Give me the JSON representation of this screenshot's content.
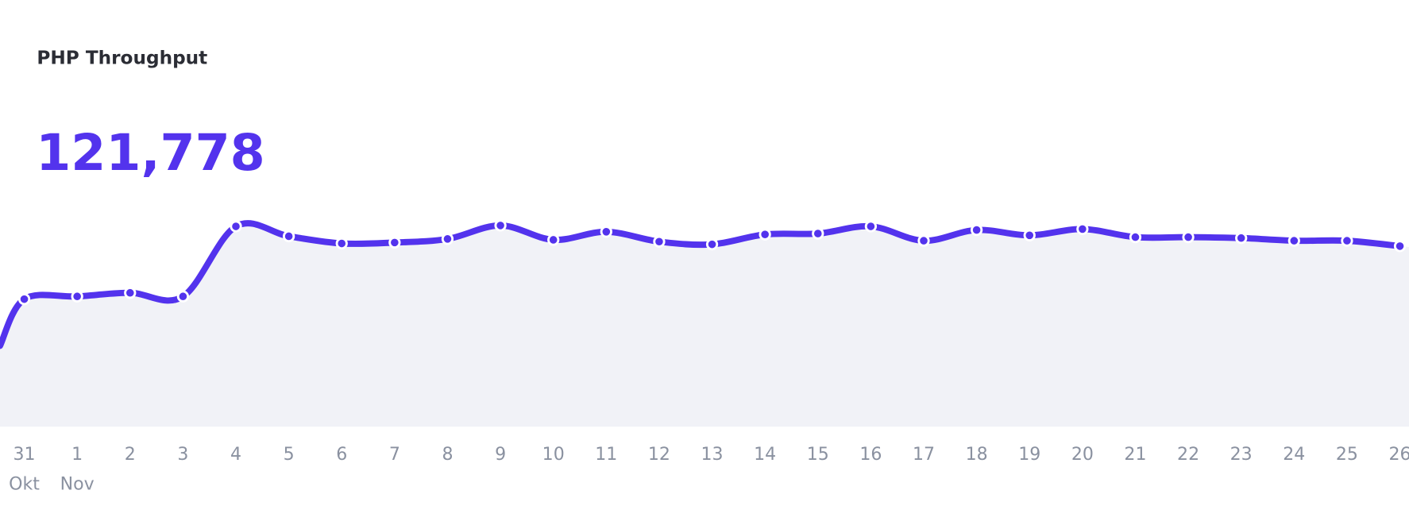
{
  "chart_data": {
    "type": "area",
    "title": "PHP Throughput",
    "total": "121,778",
    "categories": [
      "31",
      "1",
      "2",
      "3",
      "4",
      "5",
      "6",
      "7",
      "8",
      "9",
      "10",
      "11",
      "12",
      "13",
      "14",
      "15",
      "16",
      "17",
      "18",
      "19",
      "20",
      "21",
      "22",
      "23",
      "24",
      "25",
      "26"
    ],
    "month_labels": [
      {
        "index": 0,
        "label": "Okt"
      },
      {
        "index": 1,
        "label": "Nov"
      }
    ],
    "values": [
      142,
      145,
      149,
      145,
      223,
      212,
      204,
      205,
      209,
      224,
      208,
      217,
      206,
      203,
      214,
      215,
      223,
      207,
      219,
      213,
      220,
      211,
      211,
      210,
      207,
      207,
      201
    ],
    "ylim": [
      0,
      275
    ],
    "y_axis_shown": false,
    "grid": false,
    "colors": {
      "line": "#5333ed",
      "fill": "#f1f2f7",
      "title": "#2b2d35",
      "ticks": "#8a91a0"
    }
  }
}
